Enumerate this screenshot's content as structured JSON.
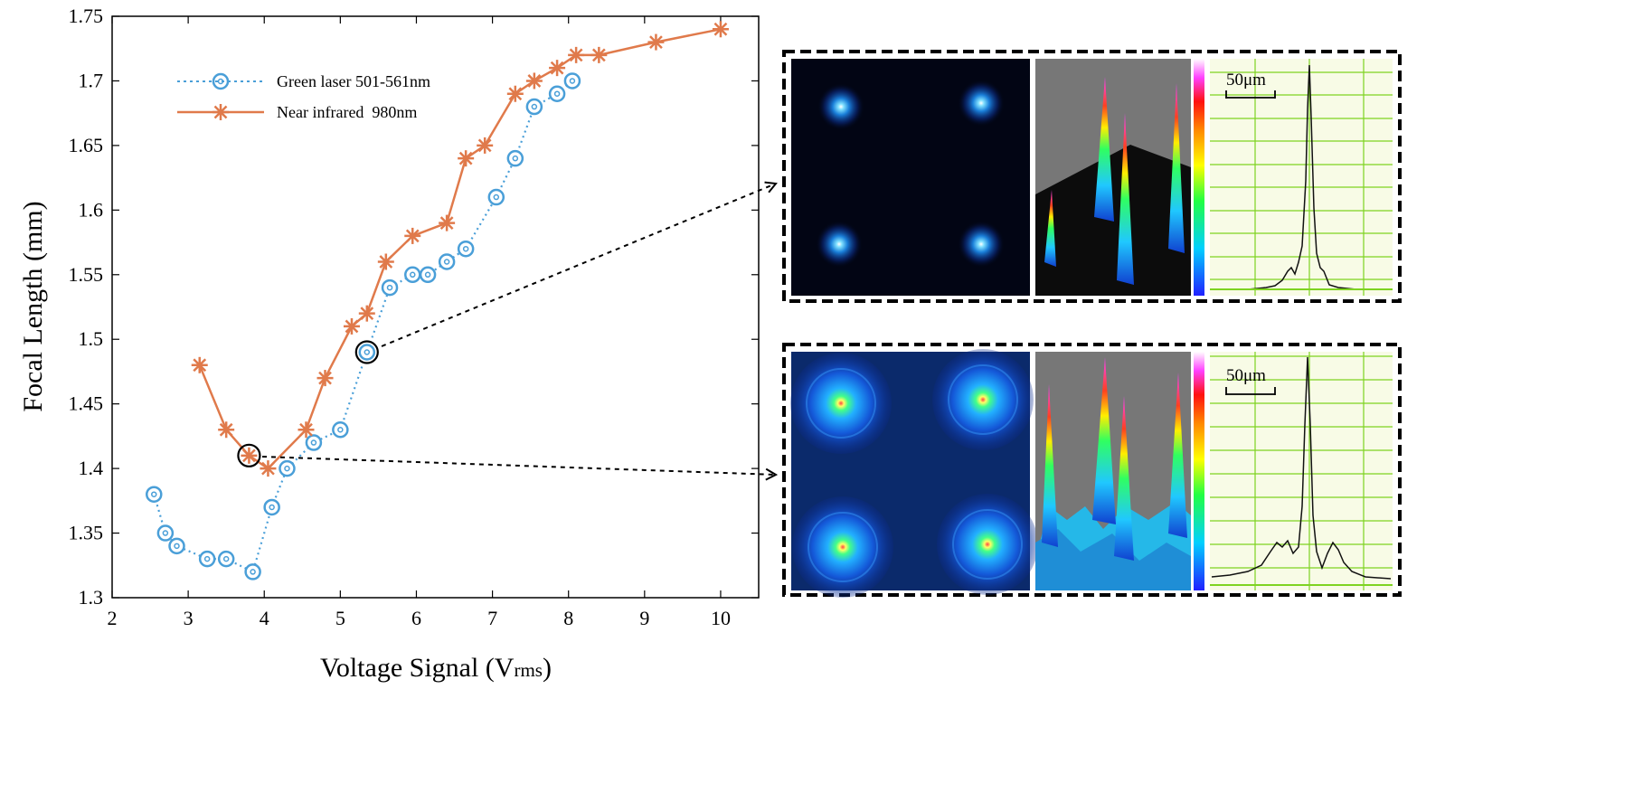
{
  "chart_data": {
    "type": "line",
    "xlabel": "Voltage Signal (V",
    "xlabel_sub": "rms",
    "xlabel_close": ")",
    "ylabel": "Focal Length (mm)",
    "xlim": [
      2,
      10.5
    ],
    "ylim": [
      1.3,
      1.75
    ],
    "xticks": [
      2,
      3,
      4,
      5,
      6,
      7,
      8,
      9,
      10
    ],
    "yticks": [
      1.3,
      1.35,
      1.4,
      1.45,
      1.5,
      1.55,
      1.6,
      1.65,
      1.7,
      1.75
    ],
    "ytick_labels": [
      "1.3",
      "1.35",
      "1.4",
      "1.45",
      "1.5",
      "1.55",
      "1.6",
      "1.65",
      "1.7",
      "1.75"
    ],
    "legend_position": "top-left",
    "series": [
      {
        "name": "Green laser 501-561nm",
        "color": "#4a9fd8",
        "line_style": "dotted",
        "marker": "circle",
        "x": [
          2.55,
          2.7,
          2.85,
          3.25,
          3.5,
          3.85,
          4.1,
          4.3,
          4.65,
          5.0,
          5.35,
          5.65,
          5.95,
          6.15,
          6.4,
          6.65,
          7.05,
          7.3,
          7.55,
          7.85,
          8.05
        ],
        "y": [
          1.38,
          1.35,
          1.34,
          1.33,
          1.33,
          1.32,
          1.37,
          1.4,
          1.42,
          1.43,
          1.49,
          1.54,
          1.55,
          1.55,
          1.56,
          1.57,
          1.61,
          1.64,
          1.68,
          1.69,
          1.7
        ]
      },
      {
        "name": "Near infrared  980nm",
        "color": "#e07a4b",
        "line_style": "solid",
        "marker": "star",
        "x": [
          3.15,
          3.5,
          3.8,
          4.05,
          4.55,
          4.8,
          5.15,
          5.35,
          5.6,
          5.95,
          6.4,
          6.65,
          6.9,
          7.3,
          7.55,
          7.85,
          8.1,
          8.4,
          9.15,
          10.0
        ],
        "y": [
          1.48,
          1.43,
          1.41,
          1.4,
          1.43,
          1.47,
          1.51,
          1.52,
          1.56,
          1.58,
          1.59,
          1.64,
          1.65,
          1.69,
          1.7,
          1.71,
          1.72,
          1.72,
          1.73,
          1.74
        ]
      }
    ],
    "highlighted_points": [
      {
        "series": "Green laser 501-561nm",
        "x": 5.35,
        "y": 1.49,
        "target_panel": "top"
      },
      {
        "series": "Near infrared  980nm",
        "x": 3.8,
        "y": 1.41,
        "target_panel": "bottom"
      }
    ]
  },
  "panels": {
    "top": {
      "scale_label": "50μm"
    },
    "bottom": {
      "scale_label": "50μm"
    }
  },
  "colors": {
    "axis": "#000000",
    "profile_bg": "#f8fbe6",
    "profile_grid": "#7ed321",
    "profile_line": "#111111",
    "beam_bg_dark": "#020514",
    "beam_bg_glow": "#0b2a6b",
    "surface_bg": "#777777"
  }
}
